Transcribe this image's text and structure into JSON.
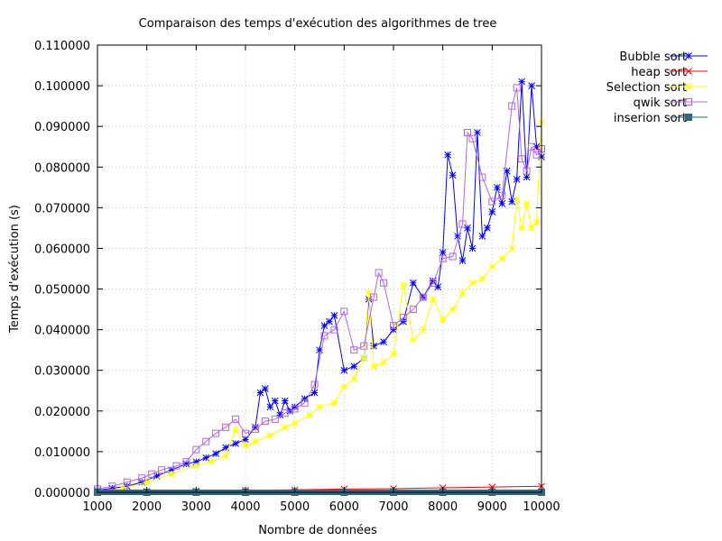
{
  "chart_data": {
    "type": "line",
    "title": "Comparaison des temps d'exécution des algorithmes de tree",
    "xlabel": "Nombre de données",
    "ylabel": "Temps d'exécution (s)",
    "xlim": [
      1000,
      10000
    ],
    "ylim": [
      0,
      0.11
    ],
    "xticks": [
      1000,
      2000,
      3000,
      4000,
      5000,
      6000,
      7000,
      8000,
      9000,
      10000
    ],
    "yticks": [
      "0.000000",
      "0.010000",
      "0.020000",
      "0.030000",
      "0.040000",
      "0.050000",
      "0.060000",
      "0.070000",
      "0.080000",
      "0.090000",
      "0.100000",
      "0.110000"
    ],
    "grid": true,
    "legend_position": "outside-top-right",
    "series": [
      {
        "name": "Bubble sort",
        "color": "#0000ff",
        "marker": "star",
        "x": [
          1000,
          1300,
          1600,
          1900,
          2200,
          2500,
          2800,
          3000,
          3200,
          3400,
          3600,
          3800,
          4000,
          4200,
          4300,
          4400,
          4500,
          4600,
          4700,
          4800,
          4900,
          5000,
          5200,
          5400,
          5500,
          5600,
          5700,
          5800,
          6000,
          6200,
          6400,
          6500,
          6600,
          6800,
          7000,
          7200,
          7400,
          7600,
          7800,
          7900,
          8000,
          8100,
          8200,
          8300,
          8400,
          8500,
          8600,
          8700,
          8800,
          8900,
          9000,
          9100,
          9200,
          9300,
          9400,
          9500,
          9600,
          9700,
          9800,
          9900,
          10000
        ],
        "y": [
          0.0005,
          0.001,
          0.0015,
          0.0025,
          0.004,
          0.0055,
          0.007,
          0.0075,
          0.0085,
          0.0095,
          0.011,
          0.012,
          0.013,
          0.016,
          0.0245,
          0.0255,
          0.021,
          0.0225,
          0.019,
          0.0225,
          0.02,
          0.021,
          0.023,
          0.0245,
          0.035,
          0.041,
          0.042,
          0.0435,
          0.03,
          0.031,
          0.033,
          0.0475,
          0.036,
          0.037,
          0.04,
          0.042,
          0.0515,
          0.048,
          0.052,
          0.0505,
          0.059,
          0.083,
          0.078,
          0.063,
          0.057,
          0.065,
          0.06,
          0.0885,
          0.063,
          0.065,
          0.069,
          0.075,
          0.071,
          0.079,
          0.0715,
          0.077,
          0.101,
          0.0775,
          0.1,
          0.085,
          0.0825
        ]
      },
      {
        "name": "heap sort",
        "color": "#ff0000",
        "marker": "x",
        "x": [
          1000,
          2000,
          3000,
          4000,
          5000,
          6000,
          7000,
          8000,
          9000,
          10000
        ],
        "y": [
          0.0001,
          0.0002,
          0.0003,
          0.0005,
          0.0006,
          0.0008,
          0.0009,
          0.0011,
          0.0013,
          0.0015
        ]
      },
      {
        "name": "Selection sort",
        "color": "#ffff00",
        "marker": "star",
        "x": [
          1000,
          1500,
          2000,
          2500,
          3000,
          3300,
          3600,
          3800,
          4000,
          4200,
          4500,
          4800,
          5000,
          5300,
          5500,
          5800,
          6000,
          6200,
          6400,
          6500,
          6600,
          6800,
          7000,
          7200,
          7400,
          7600,
          7800,
          8000,
          8200,
          8400,
          8600,
          8800,
          9000,
          9200,
          9400,
          9500,
          9600,
          9700,
          9800,
          9900,
          10000
        ],
        "y": [
          0.0003,
          0.001,
          0.0025,
          0.0045,
          0.0065,
          0.0075,
          0.009,
          0.0155,
          0.0115,
          0.0125,
          0.014,
          0.016,
          0.017,
          0.019,
          0.021,
          0.022,
          0.026,
          0.028,
          0.033,
          0.049,
          0.031,
          0.032,
          0.034,
          0.051,
          0.0375,
          0.04,
          0.0475,
          0.0425,
          0.045,
          0.049,
          0.0515,
          0.0525,
          0.0555,
          0.0575,
          0.06,
          0.072,
          0.065,
          0.071,
          0.065,
          0.0665,
          0.091
        ]
      },
      {
        "name": "qwik sort",
        "color": "#b266e6",
        "marker": "square",
        "x": [
          1000,
          1300,
          1600,
          1900,
          2100,
          2300,
          2600,
          2800,
          3000,
          3200,
          3400,
          3600,
          3800,
          4000,
          4200,
          4400,
          4600,
          4800,
          5000,
          5200,
          5400,
          5600,
          5800,
          6000,
          6200,
          6400,
          6600,
          6700,
          6800,
          7000,
          7200,
          7400,
          7600,
          7800,
          8000,
          8200,
          8400,
          8500,
          8600,
          8800,
          9000,
          9200,
          9400,
          9500,
          9600,
          9700,
          9800,
          9900,
          10000
        ],
        "y": [
          0.0008,
          0.0015,
          0.0025,
          0.0035,
          0.0045,
          0.0055,
          0.0065,
          0.0075,
          0.0105,
          0.0125,
          0.0145,
          0.016,
          0.018,
          0.0145,
          0.0155,
          0.0175,
          0.018,
          0.0195,
          0.0205,
          0.022,
          0.0265,
          0.0385,
          0.04,
          0.0445,
          0.035,
          0.036,
          0.048,
          0.054,
          0.0515,
          0.041,
          0.043,
          0.045,
          0.048,
          0.0515,
          0.0575,
          0.058,
          0.066,
          0.0885,
          0.087,
          0.0775,
          0.0715,
          0.073,
          0.095,
          0.0995,
          0.082,
          0.079,
          0.085,
          0.083,
          0.0845
        ]
      },
      {
        "name": "inserion sort",
        "color": "#336680",
        "marker": "filled-square",
        "x": [
          1000,
          2000,
          3000,
          4000,
          5000,
          6000,
          7000,
          8000,
          9000,
          10000
        ],
        "y": [
          0.0,
          0.0,
          0.0,
          0.0,
          0.0,
          0.0,
          0.0,
          0.0,
          0.0,
          0.0
        ]
      }
    ]
  }
}
